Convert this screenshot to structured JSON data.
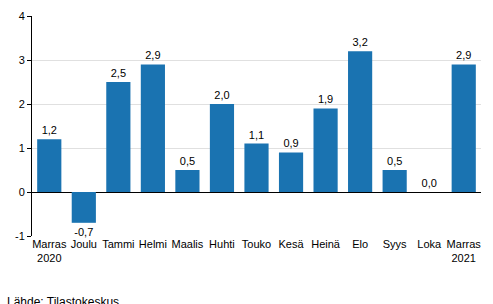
{
  "chart_data": {
    "type": "bar",
    "categories": [
      "Marras 2020",
      "Joulu",
      "Tammi",
      "Helmi",
      "Maalis",
      "Huhti",
      "Touko",
      "Kesä",
      "Heinä",
      "Elo",
      "Syys",
      "Loka",
      "Marras 2021"
    ],
    "values": [
      1.2,
      -0.7,
      2.5,
      2.9,
      0.5,
      2.0,
      1.1,
      0.9,
      1.9,
      3.2,
      0.5,
      0.0,
      2.9
    ],
    "value_labels": [
      "1,2",
      "-0,7",
      "2,5",
      "2,9",
      "0,5",
      "2,0",
      "1,1",
      "0,9",
      "1,9",
      "3,2",
      "0,5",
      "0,0",
      "2,9"
    ],
    "data_labels": true,
    "color": "#1a73b1",
    "ylim": [
      -1,
      4
    ],
    "yticks": [
      -1,
      0,
      1,
      2,
      3,
      4
    ],
    "grid": true,
    "source": "Lähde: Tilastokeskus"
  }
}
